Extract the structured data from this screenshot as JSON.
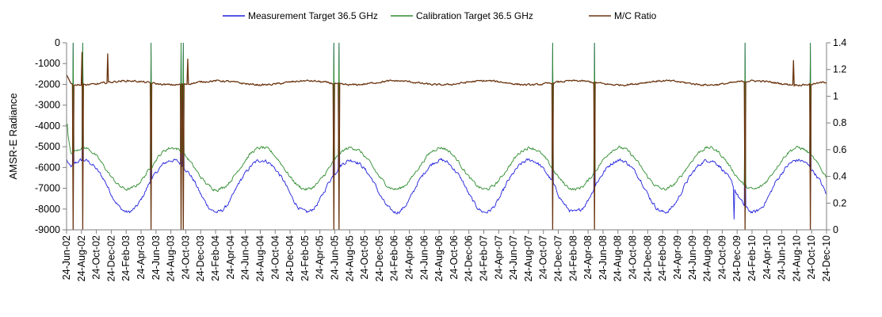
{
  "chart_data": {
    "type": "line",
    "title": "",
    "ylabel": "AMSR-E Radiance",
    "y2label": "",
    "ylim": [
      -9000,
      0
    ],
    "y_ticks": [
      0,
      -1000,
      -2000,
      -3000,
      -4000,
      -5000,
      -6000,
      -7000,
      -8000,
      -9000
    ],
    "y2lim": [
      0,
      1.4
    ],
    "y2_ticks": [
      0,
      0.2,
      0.4,
      0.6,
      0.8,
      1,
      1.2,
      1.4
    ],
    "x_tick_labels": [
      "24-Jun-02",
      "24-Aug-02",
      "24-Oct-02",
      "24-Dec-02",
      "24-Feb-03",
      "24-Apr-03",
      "24-Jun-03",
      "24-Aug-03",
      "24-Oct-03",
      "24-Dec-03",
      "24-Feb-04",
      "24-Apr-04",
      "24-Jun-04",
      "24-Aug-04",
      "24-Oct-04",
      "24-Dec-04",
      "24-Feb-05",
      "24-Apr-05",
      "24-Jun-05",
      "24-Aug-05",
      "24-Oct-05",
      "24-Dec-05",
      "24-Feb-06",
      "24-Apr-06",
      "24-Jun-06",
      "24-Aug-06",
      "24-Oct-06",
      "24-Dec-06",
      "24-Feb-07",
      "24-Apr-07",
      "24-Jun-07",
      "24-Aug-07",
      "24-Oct-07",
      "24-Dec-07",
      "24-Feb-08",
      "24-Apr-08",
      "24-Jun-08",
      "24-Aug-08",
      "24-Oct-08",
      "24-Dec-08",
      "24-Feb-09",
      "24-Apr-09",
      "24-Jun-09",
      "24-Aug-09",
      "24-Oct-09",
      "24-Dec-09",
      "24-Feb-10",
      "24-Apr-10",
      "24-Jun-10",
      "24-Aug-10",
      "24-Oct-10",
      "24-Dec-10"
    ],
    "legend_position": "top",
    "grid": false,
    "series": [
      {
        "name": "Measurement Target 36.5 GHz",
        "axis": "left",
        "color": "#1f1fdd",
        "mean": -6700,
        "amplitude": 1050,
        "noise": 160,
        "peak_month": 8,
        "extra_low": -400,
        "start": -5600
      },
      {
        "name": "Calibration Target 36.5 GHz",
        "axis": "left",
        "color": "#2e8b2e",
        "mean": -6050,
        "amplitude": 1000,
        "noise": 140,
        "peak_month": 8,
        "extra_low": 0,
        "start": -4000
      },
      {
        "name": "M/C Ratio",
        "axis": "right",
        "color": "#6b3510",
        "mean": 1.1,
        "amplitude": 0.015,
        "noise": 0.012,
        "peak_month": 2,
        "extra_low": 0,
        "start": 1.16
      }
    ],
    "dropout_dates": [
      "2002-07-20",
      "2002-08-28",
      "2003-06-05",
      "2003-10-05",
      "2003-10-15",
      "2005-06-20",
      "2005-07-10",
      "2007-11-30",
      "2008-05-20",
      "2010-01-24",
      "2010-10-20"
    ],
    "spikes": [
      {
        "series": "M/C Ratio",
        "date": "2002-08-25",
        "value": 1.33
      },
      {
        "series": "M/C Ratio",
        "date": "2002-12-10",
        "value": 1.32
      },
      {
        "series": "M/C Ratio",
        "date": "2003-11-01",
        "value": 1.28
      },
      {
        "series": "M/C Ratio",
        "date": "2010-08-10",
        "value": 1.27
      },
      {
        "series": "Calibration Target 36.5 GHz",
        "date": "2002-06-28",
        "value": -3900
      },
      {
        "series": "Measurement Target 36.5 GHz",
        "date": "2009-12-10",
        "value": -8500
      }
    ]
  }
}
